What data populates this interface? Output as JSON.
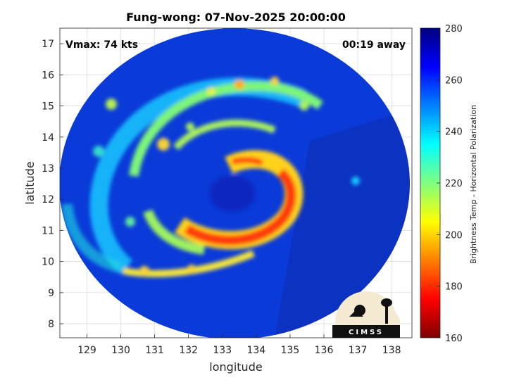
{
  "chart_data": {
    "type": "heatmap",
    "title": "Fung-wong: 07-Nov-2025 20:00:00",
    "xlabel": "longitude",
    "ylabel": "latitude",
    "xlim": [
      128.2,
      138.6
    ],
    "ylim": [
      7.55,
      17.5
    ],
    "xticks": [
      129,
      130,
      131,
      132,
      133,
      134,
      135,
      136,
      137,
      138
    ],
    "yticks": [
      8,
      9,
      10,
      11,
      12,
      13,
      14,
      15,
      16,
      17
    ],
    "grid": true,
    "annotations": {
      "vmax": "Vmax: 74 kts",
      "time_offset": "00:19 away"
    },
    "colorbar": {
      "label": "Brightness Temp - Horizontal Polarization",
      "range": [
        160,
        280
      ],
      "ticks": [
        160,
        180,
        200,
        220,
        240,
        260,
        280
      ],
      "colormap": "jet"
    },
    "logo": "CIMSS",
    "storm": {
      "center_lon": 133.3,
      "center_lat": 12.4,
      "swath_center_lon": 133.3,
      "swath_center_lat": 12.5,
      "swath_radius_deg": 5.2
    }
  },
  "colors": {
    "background_field": "#0a3ad8",
    "axes": "#262626",
    "grid": "#d0d0d0"
  }
}
